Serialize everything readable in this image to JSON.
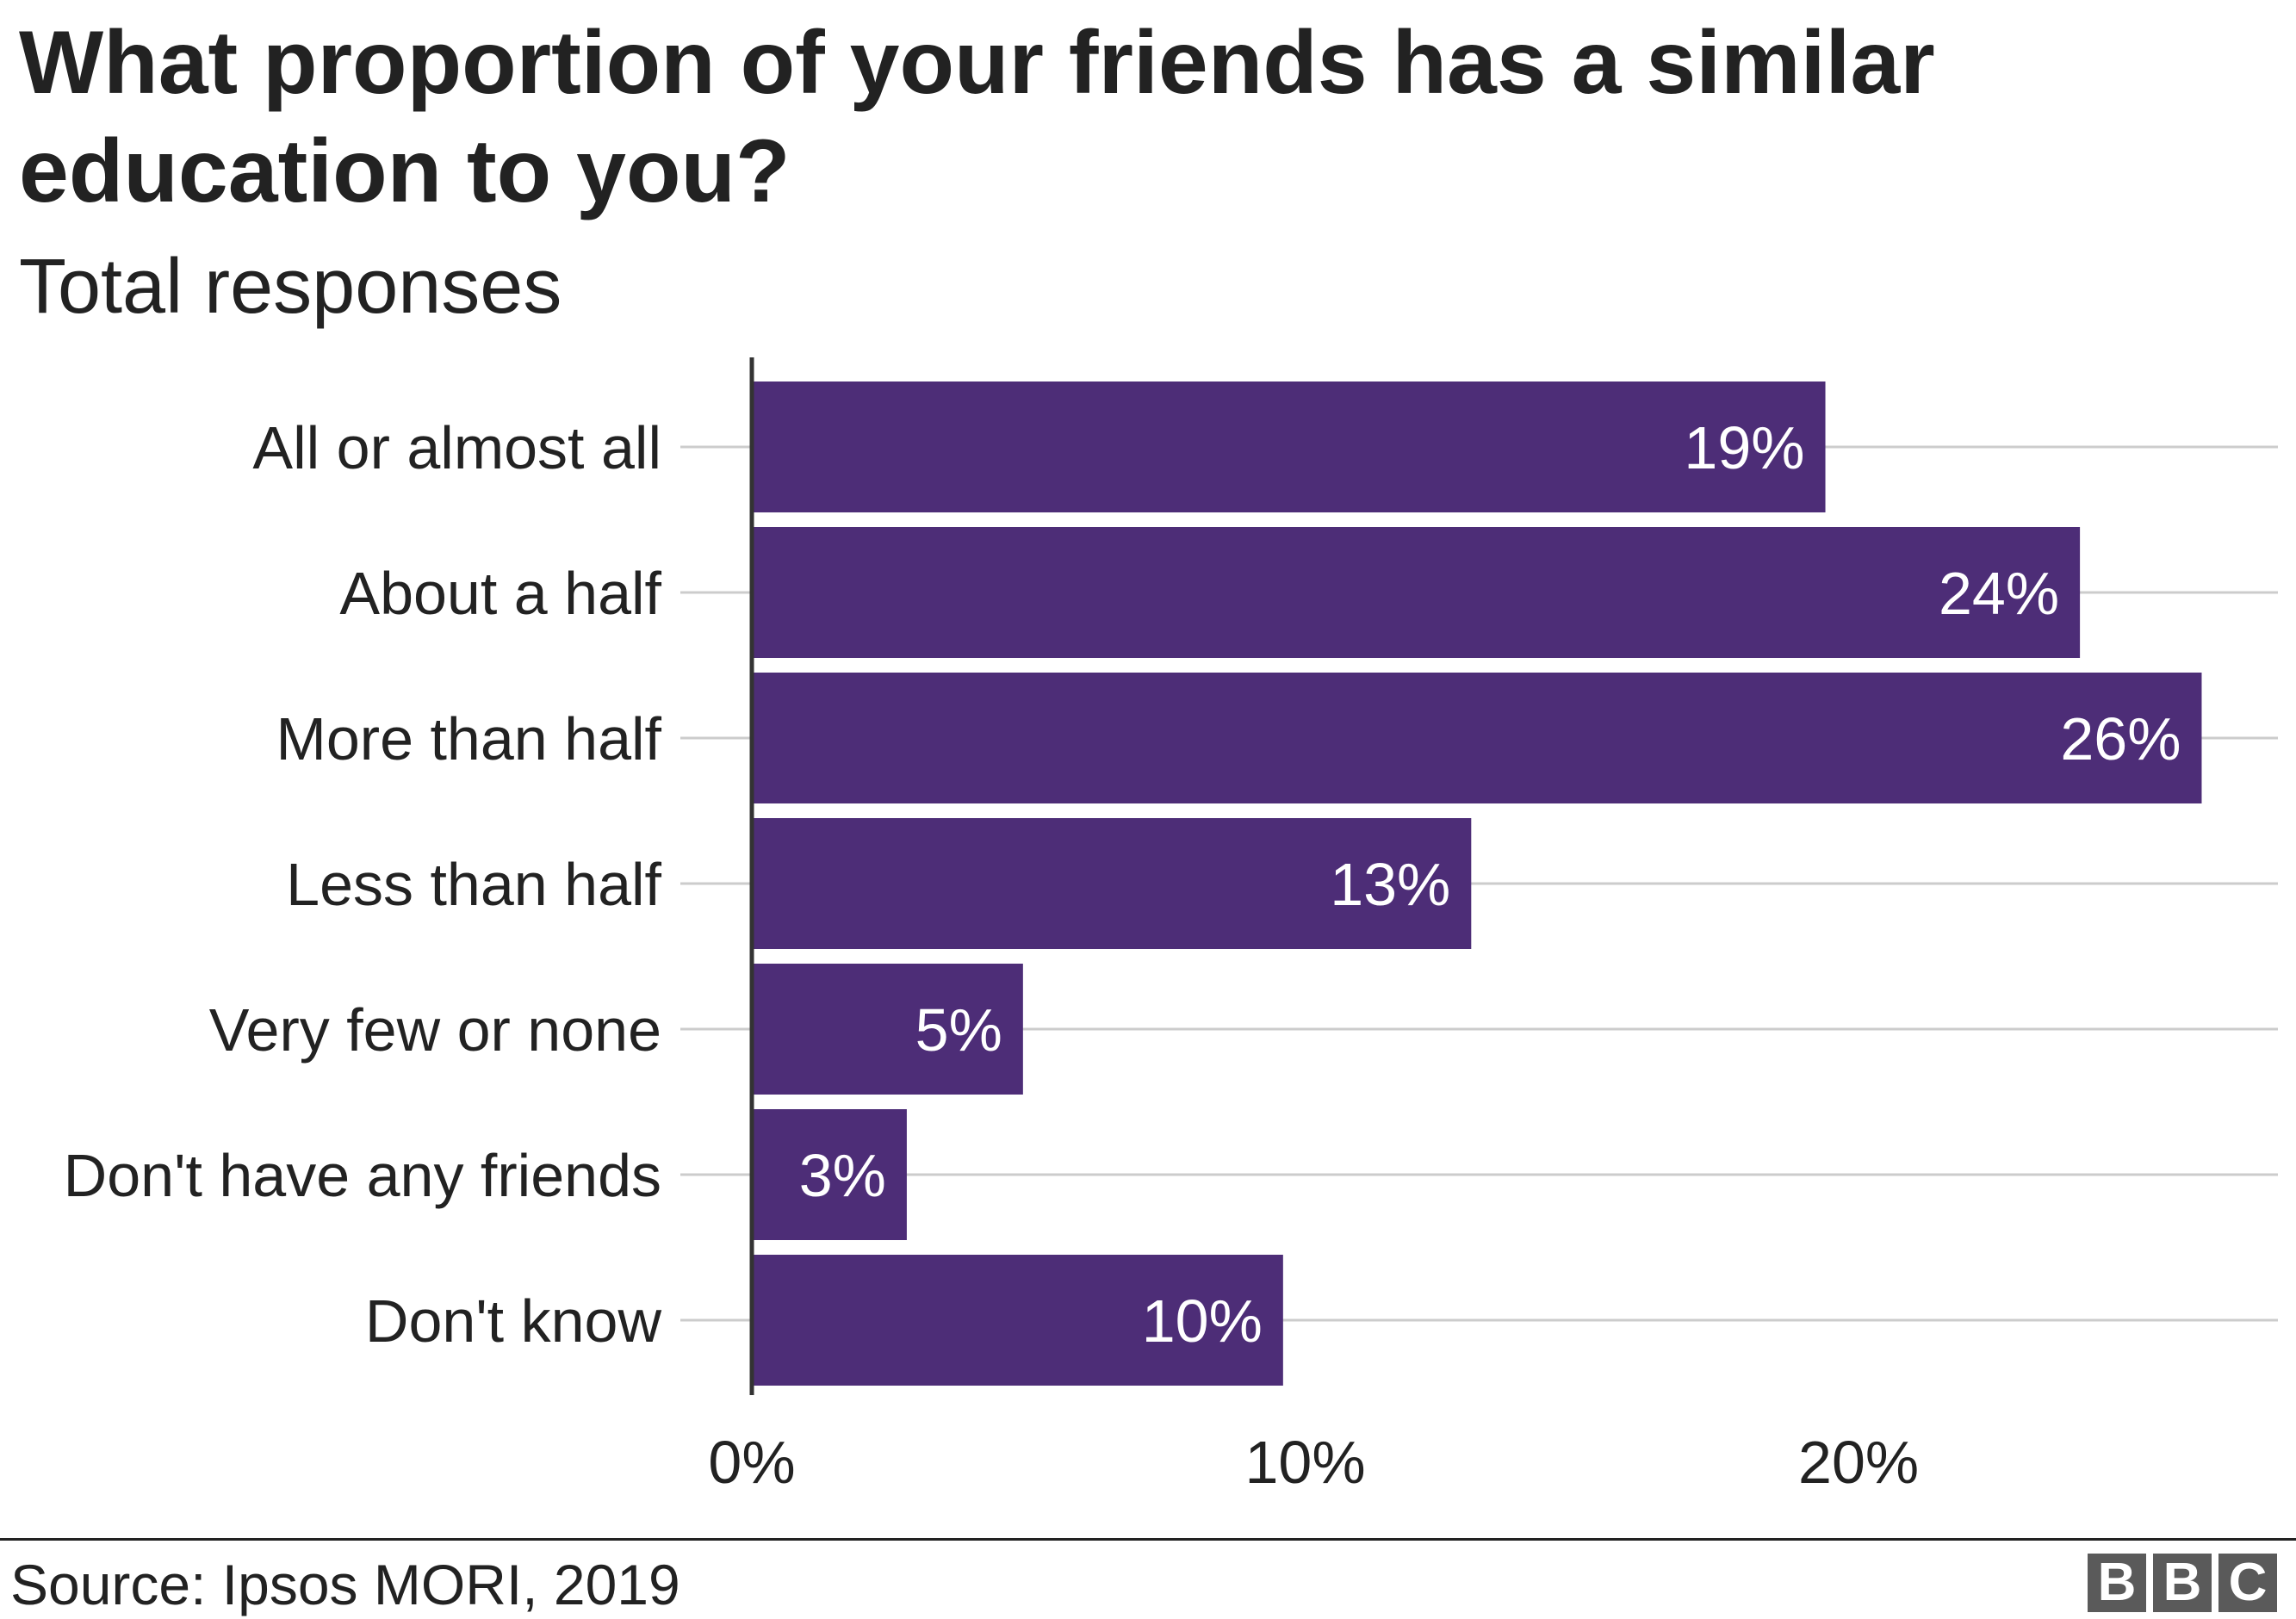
{
  "chart_data": {
    "type": "bar",
    "orientation": "horizontal",
    "title": "What proportion of your friends has a similar education to you?",
    "subtitle": "Total responses",
    "categories": [
      "All or almost all",
      "About a half",
      "More than half",
      "Less than half",
      "Very few or none",
      "Don't have any friends",
      "Don't know"
    ],
    "values": [
      19.4,
      24,
      26.2,
      13,
      4.9,
      2.8,
      9.6
    ],
    "value_labels": [
      "19%",
      "24%",
      "26%",
      "13%",
      "5%",
      "3%",
      "10%"
    ],
    "xticks": [
      0,
      10,
      20
    ],
    "xtick_labels": [
      "0%",
      "10%",
      "20%"
    ],
    "xlim": [
      0,
      27.5
    ],
    "grid": "horizontal",
    "bar_color": "#4d2d77"
  },
  "footer": {
    "source": "Source: Ipsos MORI, 2019",
    "logo": [
      "B",
      "B",
      "C"
    ]
  }
}
